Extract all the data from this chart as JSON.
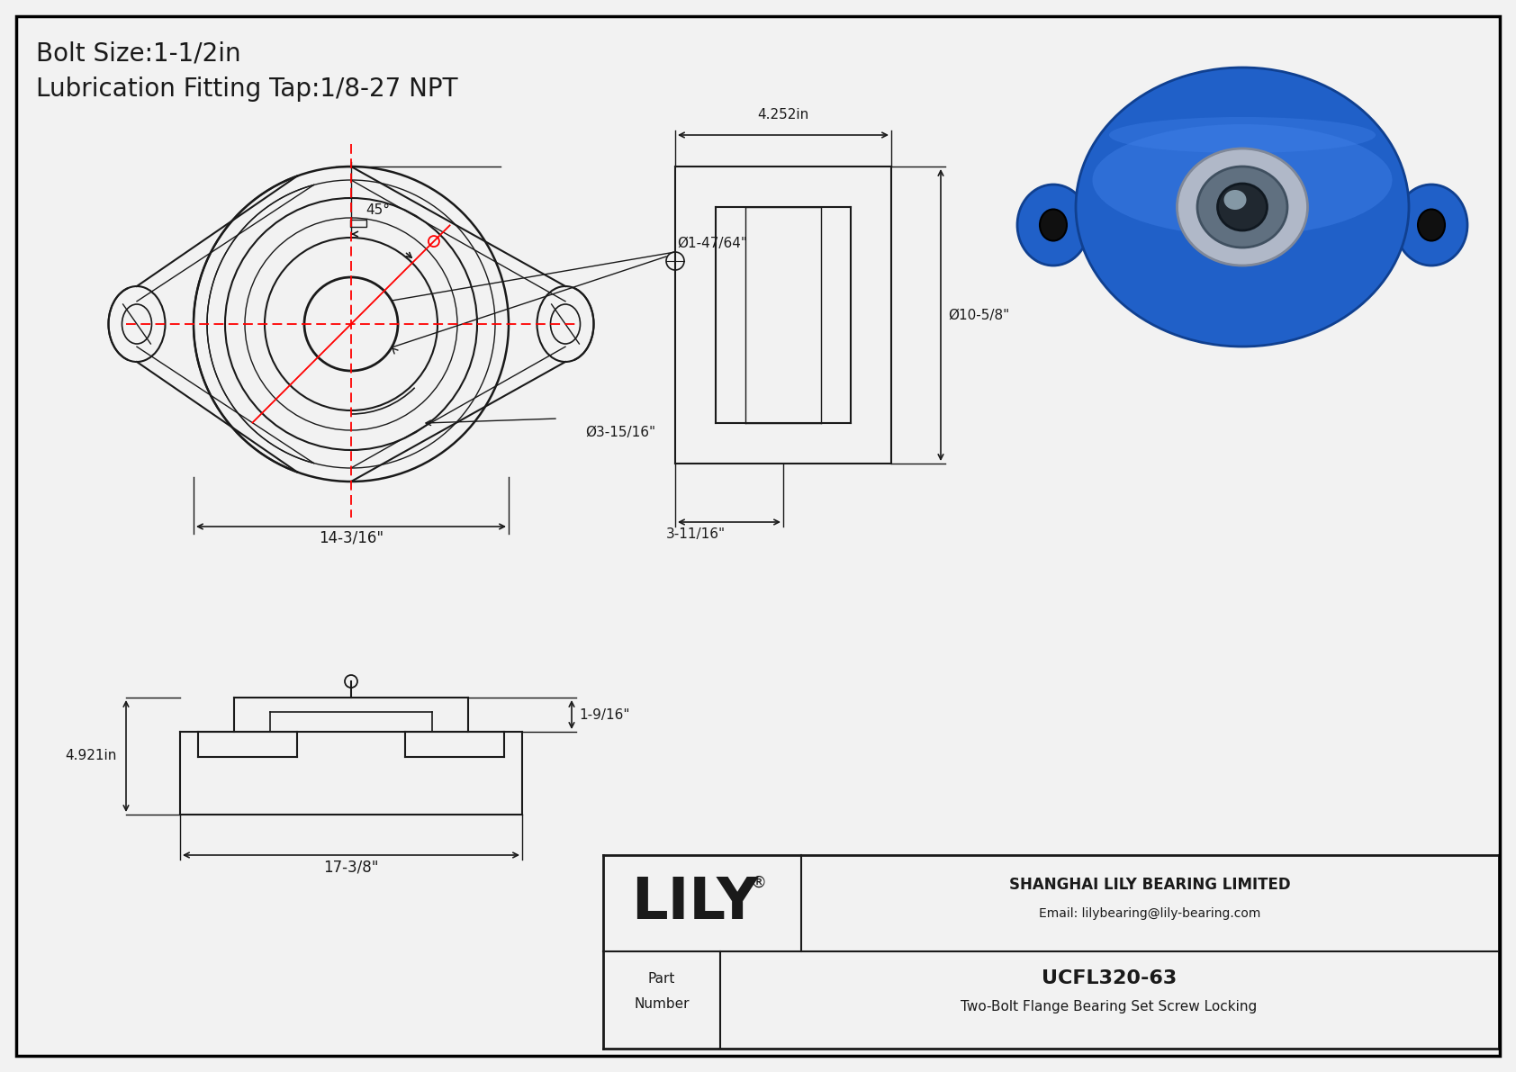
{
  "bg_color": "#f2f2f2",
  "border_color": "#000000",
  "line_color": "#1a1a1a",
  "red_line_color": "#ff0000",
  "title_line1": "Bolt Size:1-1/2in",
  "title_line2": "Lubrication Fitting Tap:1/8-27 NPT",
  "title_fontsize": 20,
  "company_name": "SHANGHAI LILY BEARING LIMITED",
  "company_email": "Email: lilybearing@lily-bearing.com",
  "part_number": "UCFL320-63",
  "part_desc": "Two-Bolt Flange Bearing Set Screw Locking",
  "brand": "LILY",
  "brand_reg": "®",
  "dim_45": "45°",
  "dim_inner": "Ø1-47/64\"",
  "dim_outer": "Ø3-15/16\"",
  "dim_width": "14-3/16\"",
  "dim_side_top": "4.252in",
  "dim_side_diam": "Ø10-5/8\"",
  "dim_side_bot": "3-11/16\"",
  "dim_front_height": "4.921in",
  "dim_front_top": "1-9/16\"",
  "dim_front_width": "17-3/8\""
}
